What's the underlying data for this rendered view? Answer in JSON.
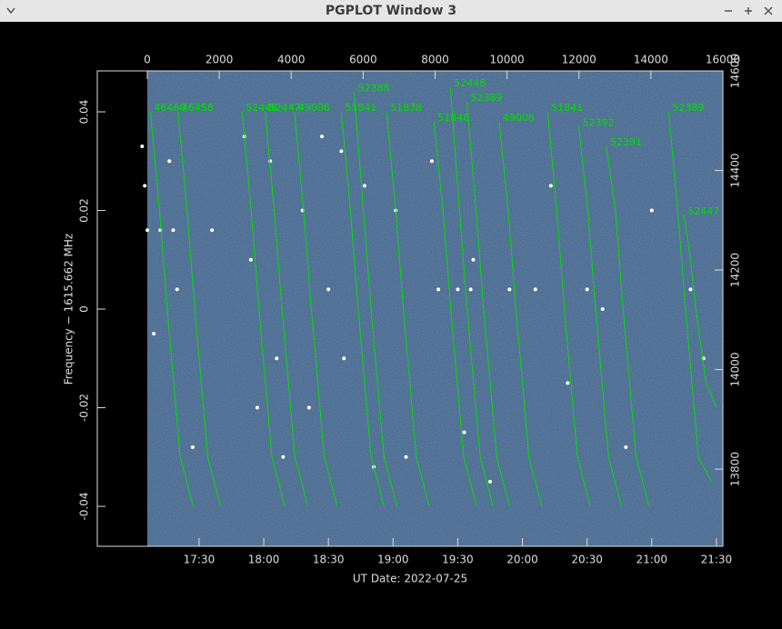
{
  "window_title": "PGPLOT Window 3",
  "chart_data": {
    "type": "line",
    "xlabel": "UT Date: 2022-07-25",
    "ylabel": "Frequency − 1615.662 MHz",
    "xlim": [
      16.713,
      21.55
    ],
    "xticks": [
      {
        "value": 17.5,
        "label": "17:30"
      },
      {
        "value": 18,
        "label": "18:00"
      },
      {
        "value": 18.5,
        "label": "18:30"
      },
      {
        "value": 19,
        "label": "19:00"
      },
      {
        "value": 19.5,
        "label": "19:30"
      },
      {
        "value": 20,
        "label": "20:00"
      },
      {
        "value": 20.5,
        "label": "20:30"
      },
      {
        "value": 21,
        "label": "21:00"
      },
      {
        "value": 21.5,
        "label": "21:30"
      }
    ],
    "ylim": [
      -0.0481,
      0.0483
    ],
    "yticks": [
      -0.04,
      -0.02,
      0,
      0.02,
      0.04
    ],
    "x2lim": [
      -1390,
      16000
    ],
    "x2ticks": [
      0,
      2000,
      4000,
      6000,
      8000,
      10000,
      12000,
      14000,
      16000
    ],
    "y2lim": [
      13645,
      14600
    ],
    "y2ticks": [
      13800,
      14000,
      14200,
      14400,
      14600
    ],
    "series": [
      {
        "name": "46460",
        "color": "#00e000",
        "x": [
          17.124,
          17.194,
          17.254,
          17.354,
          17.454
        ],
        "values": [
          0.04,
          0.02,
          0,
          -0.03,
          -0.04
        ]
      },
      {
        "name": "46458",
        "color": "#00e000",
        "x": [
          17.337,
          17.407,
          17.467,
          17.567,
          17.667
        ],
        "values": [
          0.04,
          0.02,
          0,
          -0.03,
          -0.04
        ]
      },
      {
        "name": "52448",
        "color": "#00e000",
        "x": [
          17.833,
          17.903,
          17.963,
          18.063,
          18.163
        ],
        "values": [
          0.04,
          0.02,
          0,
          -0.03,
          -0.04
        ]
      },
      {
        "name": "52447",
        "color": "#00e000",
        "x": [
          18.011,
          18.081,
          18.141,
          18.241,
          18.341
        ],
        "values": [
          0.04,
          0.02,
          0,
          -0.03,
          -0.04
        ]
      },
      {
        "name": "49006",
        "color": "#00e000",
        "x": [
          18.238,
          18.308,
          18.368,
          18.468,
          18.568
        ],
        "values": [
          0.04,
          0.02,
          0,
          -0.03,
          -0.04
        ]
      },
      {
        "name": "51841",
        "color": "#00e000",
        "x": [
          18.6,
          18.67,
          18.73,
          18.83,
          18.93
        ],
        "values": [
          0.04,
          0.02,
          0,
          -0.03,
          -0.04
        ]
      },
      {
        "name": "52388",
        "color": "#00e000",
        "x": [
          18.7,
          18.77,
          18.83,
          18.93,
          19.03
        ],
        "values": [
          0.044,
          0.02,
          0,
          -0.03,
          -0.04
        ]
      },
      {
        "name": "51838",
        "color": "#00e000",
        "x": [
          18.95,
          19.02,
          19.08,
          19.18,
          19.28
        ],
        "values": [
          0.04,
          0.02,
          0,
          -0.03,
          -0.04
        ]
      },
      {
        "name": "51848",
        "color": "#00e000",
        "x": [
          19.316,
          19.386,
          19.446,
          19.546,
          19.646
        ],
        "values": [
          0.038,
          0.02,
          0,
          -0.03,
          -0.04
        ]
      },
      {
        "name": "52448",
        "color": "#00e000",
        "x": [
          19.443,
          19.513,
          19.573,
          19.673,
          19.773
        ],
        "values": [
          0.045,
          0.02,
          0,
          -0.03,
          -0.04
        ]
      },
      {
        "name": "52389",
        "color": "#00e000",
        "x": [
          19.571,
          19.641,
          19.701,
          19.801,
          19.901
        ],
        "values": [
          0.042,
          0.02,
          0,
          -0.03,
          -0.04
        ]
      },
      {
        "name": "49006",
        "color": "#00e000",
        "x": [
          19.82,
          19.89,
          19.95,
          20.05,
          20.15
        ],
        "values": [
          0.038,
          0.02,
          0,
          -0.03,
          -0.04
        ]
      },
      {
        "name": "51841",
        "color": "#00e000",
        "x": [
          20.195,
          20.265,
          20.325,
          20.425,
          20.525
        ],
        "values": [
          0.04,
          0.02,
          0,
          -0.03,
          -0.04
        ]
      },
      {
        "name": "52392",
        "color": "#00e000",
        "x": [
          20.436,
          20.506,
          20.566,
          20.666,
          20.766
        ],
        "values": [
          0.037,
          0.02,
          0,
          -0.03,
          -0.04
        ]
      },
      {
        "name": "52391",
        "color": "#00e000",
        "x": [
          20.649,
          20.719,
          20.779,
          20.879,
          20.979
        ],
        "values": [
          0.033,
          0.02,
          0,
          -0.03,
          -0.04
        ]
      },
      {
        "name": "52389",
        "color": "#00e000",
        "x": [
          21.131,
          21.201,
          21.261,
          21.361,
          21.461
        ],
        "values": [
          0.04,
          0.02,
          0,
          -0.03,
          -0.035
        ]
      },
      {
        "name": "52447",
        "color": "#00e000",
        "x": [
          21.25,
          21.3,
          21.34,
          21.42,
          21.5
        ],
        "values": [
          0.019,
          0.01,
          0,
          -0.015,
          -0.02
        ]
      }
    ],
    "points": {
      "color": "#ffffff",
      "x": [
        17.06,
        17.08,
        17.1,
        17.15,
        17.2,
        17.27,
        17.3,
        17.33,
        17.45,
        17.6,
        17.85,
        17.9,
        17.95,
        18.05,
        18.1,
        18.15,
        18.3,
        18.35,
        18.45,
        18.5,
        18.6,
        18.62,
        18.78,
        18.85,
        19.02,
        19.1,
        19.3,
        19.35,
        19.5,
        19.55,
        19.6,
        19.62,
        19.75,
        19.9,
        20.1,
        20.22,
        20.35,
        20.5,
        20.62,
        20.8,
        21.0,
        21.3,
        21.4
      ],
      "values": [
        0.033,
        0.025,
        0.016,
        -0.005,
        0.016,
        0.03,
        0.016,
        0.004,
        -0.028,
        0.016,
        0.035,
        0.01,
        -0.02,
        0.03,
        -0.01,
        -0.03,
        0.02,
        -0.02,
        0.035,
        0.004,
        0.032,
        -0.01,
        0.025,
        -0.032,
        0.02,
        -0.03,
        0.03,
        0.004,
        0.004,
        -0.025,
        0.004,
        0.01,
        -0.035,
        0.004,
        0.004,
        0.025,
        -0.015,
        0.004,
        0.0,
        -0.028,
        0.02,
        0.004,
        -0.01
      ]
    }
  }
}
